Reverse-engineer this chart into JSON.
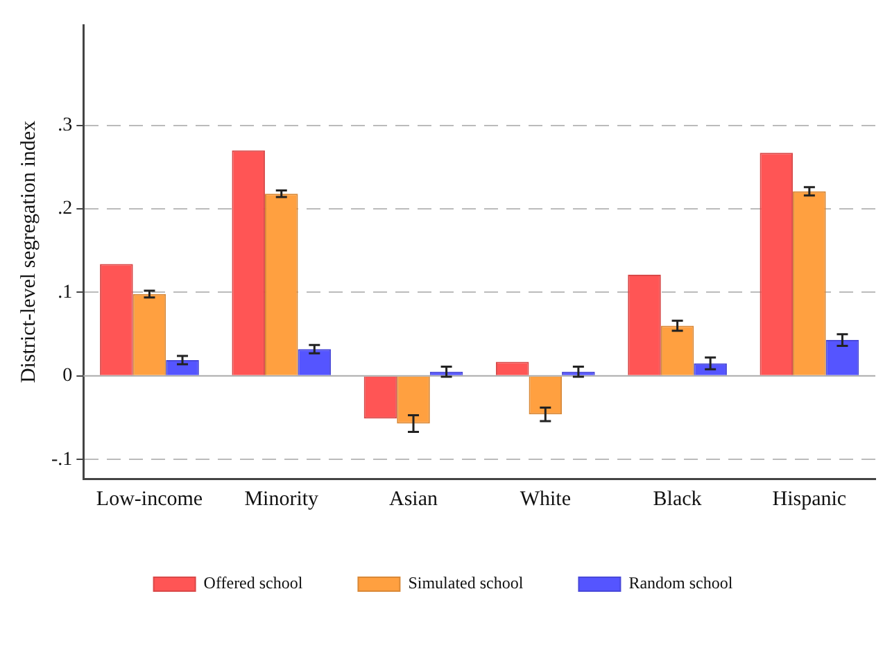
{
  "chart_data": {
    "type": "bar",
    "ylabel": "District-level segregation index",
    "categories": [
      "Low-income",
      "Minority",
      "Asian",
      "White",
      "Black",
      "Hispanic"
    ],
    "series": [
      {
        "name": "Offered school",
        "color": "#ff5555",
        "values": [
          0.134,
          0.27,
          -0.051,
          0.017,
          0.121,
          0.267
        ]
      },
      {
        "name": "Simulated school",
        "color": "#ffa040",
        "values": [
          0.098,
          0.218,
          -0.057,
          -0.046,
          0.06,
          0.221
        ],
        "errors": [
          0.004,
          0.004,
          0.01,
          0.008,
          0.006,
          0.005
        ]
      },
      {
        "name": "Random school",
        "color": "#5555ff",
        "values": [
          0.019,
          0.032,
          0.005,
          0.005,
          0.015,
          0.043
        ],
        "errors": [
          0.005,
          0.005,
          0.006,
          0.006,
          0.007,
          0.007
        ]
      }
    ],
    "ylim": [
      -0.123,
      0.42
    ],
    "yticks": [
      {
        "value": -0.1,
        "label": "-.1"
      },
      {
        "value": 0,
        "label": "0"
      },
      {
        "value": 0.1,
        "label": ".1"
      },
      {
        "value": 0.2,
        "label": ".2"
      },
      {
        "value": 0.3,
        "label": ".3"
      }
    ],
    "grid": "y",
    "legend": "bottom"
  }
}
